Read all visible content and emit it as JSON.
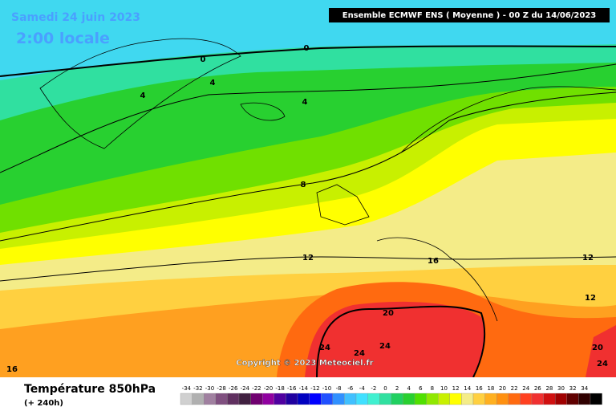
{
  "header": {
    "date": "Samedi 24 juin 2023",
    "time": "2:00 locale",
    "model": "Ensemble ECMWF ENS  ( Moyenne )  -  00 Z du 14/06/2023"
  },
  "contour_labels": [
    "0",
    "0",
    "4",
    "4",
    "4",
    "8",
    "12",
    "16",
    "12",
    "12",
    "20",
    "24",
    "24",
    "24",
    "20",
    "24",
    "16"
  ],
  "copyright": "Copyright © 2023 Meteociel.fr",
  "legend": {
    "title": "Température 850hPa",
    "subtitle": "(+ 240h)",
    "labels": [
      "-34",
      "-32",
      "-30",
      "-28",
      "-26",
      "-24",
      "-22",
      "-20",
      "-18",
      "-16",
      "-14",
      "-12",
      "-10",
      "-8",
      "-6",
      "-4",
      "-2",
      "0",
      "2",
      "4",
      "6",
      "8",
      "10",
      "12",
      "14",
      "16",
      "18",
      "20",
      "22",
      "24",
      "26",
      "28",
      "30",
      "32",
      "34"
    ]
  }
}
